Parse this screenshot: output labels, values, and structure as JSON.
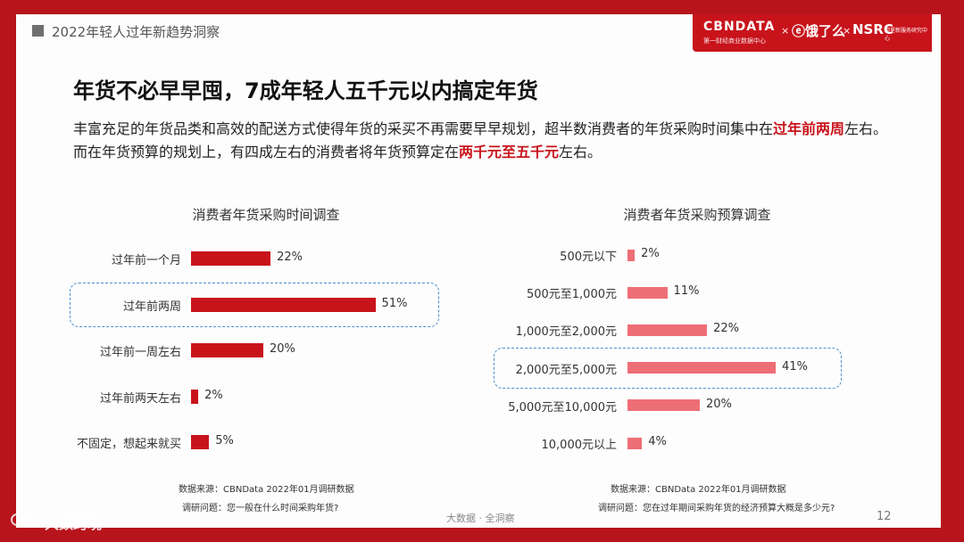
{
  "header": {
    "section": "2022年轻人过年新趋势洞察",
    "brand": {
      "cbn": "CBNDATA",
      "cbn_sub": "第一财经商业数据中心",
      "x": "×",
      "ele": "饿了么",
      "nsrc": "NSRC",
      "nsrc_sub": "阿里新服务研究中心"
    }
  },
  "headline": "年货不必早早囤，7成年轻人五千元以内搞定年货",
  "intro": {
    "p1": "丰富充足的年货品类和高效的配送方式使得年货的采买不再需要早早规划，超半数消费者的年货采购时间集中在",
    "h1": "过年前两周",
    "p2": "左右。而在年货预算的规划上，有四成左右的消费者将年货预算定在",
    "h2": "两千元至五千元",
    "p3": "左右。"
  },
  "chart_data": [
    {
      "type": "bar",
      "orientation": "horizontal",
      "title": "消费者年货采购时间调查",
      "categories": [
        "过年前一个月",
        "过年前两周",
        "过年前一周左右",
        "过年前两天左右",
        "不固定，想起来就买"
      ],
      "values": [
        22,
        51,
        20,
        2,
        5
      ],
      "value_labels": [
        "22%",
        "51%",
        "20%",
        "2%",
        "5%"
      ],
      "unit": "%",
      "highlight": "过年前两周",
      "bar_color": "#c8131b",
      "source": "数据来源：CBNData 2022年01月调研数据",
      "question": "调研问题：您一般在什么时间采购年货?"
    },
    {
      "type": "bar",
      "orientation": "horizontal",
      "title": "消费者年货采购预算调查",
      "categories": [
        "500元以下",
        "500元至1,000元",
        "1,000元至2,000元",
        "2,000元至5,000元",
        "5,000元至10,000元",
        "10,000元以上"
      ],
      "values": [
        2,
        11,
        22,
        41,
        20,
        4
      ],
      "value_labels": [
        "2%",
        "11%",
        "22%",
        "41%",
        "20%",
        "4%"
      ],
      "unit": "%",
      "highlight": "2,000元至5,000元",
      "bar_color": "#ee6e76",
      "source": "数据来源：CBNData 2022年01月调研数据",
      "question": "调研问题：您在过年期间采购年货的经济预算大概是多少元?"
    }
  ],
  "footer": {
    "center": "大数据 · 全洞察",
    "page": "12",
    "watermark": "大数跨境"
  }
}
